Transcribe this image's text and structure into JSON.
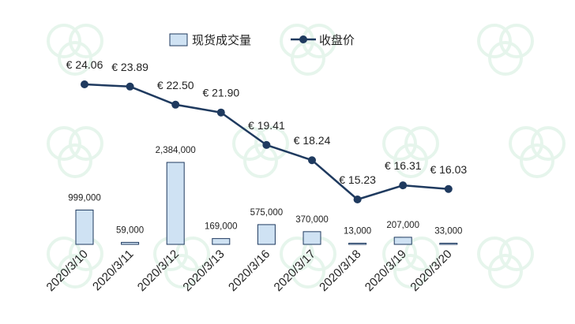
{
  "chart_data": {
    "type": "bar+line",
    "categories": [
      "2020/3/10",
      "2020/3/11",
      "2020/3/12",
      "2020/3/13",
      "2020/3/16",
      "2020/3/17",
      "2020/3/18",
      "2020/3/19",
      "2020/3/20"
    ],
    "series": [
      {
        "name": "现货成交量",
        "type": "bar",
        "values": [
          999000,
          59000,
          2384000,
          169000,
          575000,
          370000,
          13000,
          207000,
          33000
        ],
        "labels": [
          "999,000",
          "59,000",
          "2,384,000",
          "169,000",
          "575,000",
          "370,000",
          "13,000",
          "207,000",
          "33,000"
        ],
        "color": "#cfe2f3",
        "border": "#1f3a5f"
      },
      {
        "name": "收盘价",
        "type": "line",
        "values": [
          24.06,
          23.89,
          22.5,
          21.9,
          19.41,
          18.24,
          15.23,
          16.31,
          16.03
        ],
        "labels": [
          "€ 24.06",
          "€ 23.89",
          "€ 22.50",
          "€ 21.90",
          "€ 19.41",
          "€ 18.24",
          "€ 15.23",
          "€ 16.31",
          "€ 16.03"
        ],
        "color": "#1f3a5f"
      }
    ],
    "legend_position": "top-center",
    "grid": false
  }
}
